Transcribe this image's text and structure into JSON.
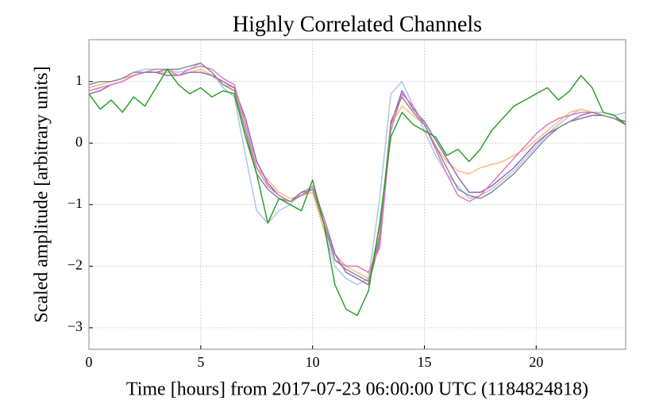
{
  "chart_data": {
    "type": "line",
    "title": "Highly Correlated Channels",
    "xlabel": "Time [hours] from 2017-07-23 06:00:00 UTC (1184824818)",
    "ylabel": "Scaled amplitude [arbitrary units]",
    "x": [
      0,
      0.5,
      1,
      1.5,
      2,
      2.5,
      3,
      3.5,
      4,
      4.5,
      5,
      5.5,
      6,
      6.5,
      7,
      7.5,
      8,
      8.5,
      9,
      9.5,
      10,
      10.5,
      11,
      11.5,
      12,
      12.5,
      13,
      13.5,
      14,
      14.5,
      15,
      15.5,
      16,
      16.5,
      17,
      17.5,
      18,
      18.5,
      19,
      19.5,
      20,
      20.5,
      21,
      21.5,
      22,
      22.5,
      23,
      23.5,
      24
    ],
    "xlim": [
      0,
      24
    ],
    "xticks": [
      0,
      5,
      10,
      15,
      20
    ],
    "ylim": [
      -3.35,
      1.68
    ],
    "yticks": [
      {
        "value": -3,
        "label": "−3"
      },
      {
        "value": -2,
        "label": "−2"
      },
      {
        "value": -1,
        "label": "−1"
      },
      0,
      1
    ],
    "grid": true,
    "series": [
      {
        "color": "#aec7e8",
        "values": [
          0.9,
          0.95,
          1.0,
          1.05,
          1.15,
          1.2,
          1.2,
          1.2,
          1.15,
          1.2,
          1.3,
          1.15,
          0.9,
          0.75,
          -0.2,
          -1.1,
          -1.3,
          -1.1,
          -1.0,
          -0.8,
          -0.7,
          -1.4,
          -2.0,
          -2.2,
          -2.3,
          -2.2,
          -0.9,
          0.8,
          1.0,
          0.6,
          0.2,
          -0.2,
          -0.5,
          -0.7,
          -0.9,
          -0.85,
          -0.75,
          -0.6,
          -0.45,
          -0.25,
          -0.05,
          0.15,
          0.3,
          0.45,
          0.55,
          0.5,
          0.5,
          0.45,
          0.5
        ]
      },
      {
        "color": "#ffbb78",
        "values": [
          0.9,
          0.95,
          1.0,
          1.05,
          1.1,
          1.15,
          1.15,
          1.15,
          1.1,
          1.15,
          1.2,
          1.1,
          0.95,
          0.9,
          0.2,
          -0.4,
          -0.6,
          -0.8,
          -0.9,
          -0.85,
          -0.8,
          -1.4,
          -1.8,
          -2.0,
          -2.1,
          -2.2,
          -1.4,
          0.3,
          0.6,
          0.45,
          0.3,
          -0.05,
          -0.3,
          -0.45,
          -0.5,
          -0.4,
          -0.35,
          -0.3,
          -0.2,
          -0.1,
          0.05,
          0.2,
          0.35,
          0.5,
          0.55,
          0.5,
          0.45,
          0.4,
          0.35
        ]
      },
      {
        "color": "#9467bd",
        "values": [
          0.8,
          0.85,
          0.95,
          1.0,
          1.1,
          1.15,
          1.15,
          1.1,
          1.1,
          1.15,
          1.15,
          1.1,
          1.0,
          0.9,
          0.4,
          -0.3,
          -0.65,
          -0.85,
          -0.95,
          -0.8,
          -0.75,
          -1.2,
          -1.8,
          -2.1,
          -2.2,
          -2.3,
          -1.6,
          0.3,
          0.85,
          0.55,
          0.35,
          0.05,
          -0.25,
          -0.55,
          -0.8,
          -0.8,
          -0.7,
          -0.55,
          -0.4,
          -0.2,
          0.0,
          0.15,
          0.25,
          0.35,
          0.4,
          0.45,
          0.45,
          0.4,
          0.35
        ]
      },
      {
        "color": "#e377c2",
        "values": [
          0.85,
          0.9,
          0.95,
          1.0,
          1.1,
          1.15,
          1.2,
          1.2,
          1.1,
          1.2,
          1.25,
          1.2,
          1.05,
          0.95,
          0.3,
          -0.4,
          -0.7,
          -0.85,
          -0.95,
          -0.85,
          -0.7,
          -1.2,
          -1.9,
          -2.0,
          -2.0,
          -2.1,
          -1.7,
          0.2,
          0.8,
          0.6,
          0.3,
          -0.1,
          -0.5,
          -0.85,
          -0.95,
          -0.85,
          -0.65,
          -0.45,
          -0.25,
          -0.05,
          0.15,
          0.3,
          0.4,
          0.45,
          0.5,
          0.5,
          0.45,
          0.4,
          0.3
        ]
      },
      {
        "color": "#8c8c8c",
        "values": [
          0.95,
          1.0,
          1.0,
          1.05,
          1.15,
          1.15,
          1.15,
          1.2,
          1.2,
          1.25,
          1.3,
          1.15,
          0.95,
          0.85,
          0.2,
          -0.5,
          -0.75,
          -0.9,
          -0.95,
          -0.85,
          -0.75,
          -1.3,
          -1.9,
          -2.05,
          -2.15,
          -2.25,
          -1.5,
          0.35,
          0.75,
          0.5,
          0.3,
          -0.05,
          -0.4,
          -0.75,
          -0.85,
          -0.9,
          -0.8,
          -0.65,
          -0.5,
          -0.3,
          -0.1,
          0.1,
          0.25,
          0.35,
          0.45,
          0.5,
          0.45,
          0.4,
          0.3
        ]
      },
      {
        "color": "#2ca02c",
        "values": [
          0.8,
          0.55,
          0.7,
          0.5,
          0.75,
          0.6,
          0.9,
          1.2,
          0.95,
          0.8,
          0.9,
          0.75,
          0.85,
          0.8,
          0.1,
          -0.5,
          -1.3,
          -0.9,
          -1.0,
          -1.1,
          -0.6,
          -1.3,
          -2.3,
          -2.7,
          -2.8,
          -2.4,
          -1.3,
          0.1,
          0.5,
          0.3,
          0.2,
          0.1,
          -0.2,
          -0.1,
          -0.3,
          -0.1,
          0.2,
          0.4,
          0.6,
          0.7,
          0.8,
          0.9,
          0.7,
          0.85,
          1.1,
          0.9,
          0.5,
          0.45,
          0.3
        ]
      }
    ]
  }
}
